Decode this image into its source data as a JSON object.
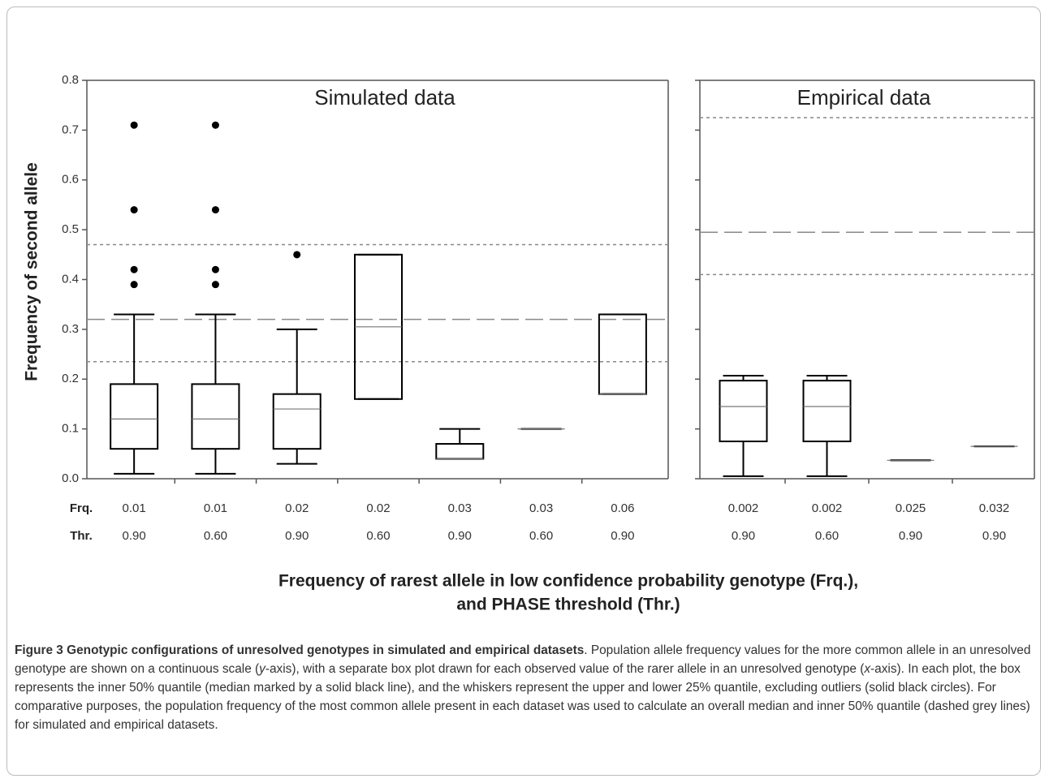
{
  "chart_data": [
    {
      "type": "box",
      "title": "Simulated data",
      "ylabel": "Frequency of second allele",
      "ylim": [
        0,
        0.8
      ],
      "yticks": [
        {
          "value": 0,
          "label": "0.0"
        },
        0.1,
        0.2,
        0.3,
        0.4,
        0.5,
        0.6,
        0.7,
        0.8
      ],
      "tick_labels": true,
      "categories": [
        "0.01",
        "0.01",
        "0.02",
        "0.02",
        "0.03",
        "0.03",
        "0.06"
      ],
      "thresholds": [
        "0.90",
        "0.60",
        "0.90",
        "0.60",
        "0.90",
        "0.60",
        "0.90"
      ],
      "boxes": [
        {
          "min": 0.01,
          "q1": 0.06,
          "median": 0.12,
          "q3": 0.19,
          "max": 0.33,
          "outliers": [
            0.39,
            0.42,
            0.54,
            0.71
          ]
        },
        {
          "min": 0.01,
          "q1": 0.06,
          "median": 0.12,
          "q3": 0.19,
          "max": 0.33,
          "outliers": [
            0.39,
            0.42,
            0.54,
            0.71
          ]
        },
        {
          "min": 0.03,
          "q1": 0.06,
          "median": 0.14,
          "q3": 0.17,
          "max": 0.3,
          "outliers": [
            0.45
          ]
        },
        {
          "min": 0.16,
          "q1": 0.16,
          "median": 0.305,
          "q3": 0.45,
          "max": 0.45,
          "outliers": []
        },
        {
          "min": 0.04,
          "q1": 0.04,
          "median": 0.04,
          "q3": 0.07,
          "max": 0.1,
          "outliers": []
        },
        {
          "min": 0.1,
          "q1": 0.1,
          "median": 0.1,
          "q3": 0.1,
          "max": 0.1,
          "outliers": []
        },
        {
          "min": 0.17,
          "q1": 0.17,
          "median": 0.17,
          "q3": 0.33,
          "max": 0.33,
          "outliers": []
        }
      ],
      "reference_lines": [
        {
          "value": 0.47,
          "style": "dotted"
        },
        {
          "value": 0.32,
          "style": "dashed"
        },
        {
          "value": 0.235,
          "style": "dotted"
        }
      ],
      "color": "#000000"
    },
    {
      "type": "box",
      "title": "Empirical data",
      "ylim": [
        0,
        0.8
      ],
      "yticks": [
        0,
        0.1,
        0.2,
        0.3,
        0.4,
        0.5,
        0.6,
        0.7,
        0.8
      ],
      "tick_labels": false,
      "categories": [
        "0.002",
        "0.002",
        "0.025",
        "0.032"
      ],
      "thresholds": [
        "0.90",
        "0.60",
        "0.90",
        "0.90"
      ],
      "boxes": [
        {
          "min": 0.005,
          "q1": 0.075,
          "median": 0.145,
          "q3": 0.197,
          "max": 0.207,
          "outliers": []
        },
        {
          "min": 0.005,
          "q1": 0.075,
          "median": 0.145,
          "q3": 0.197,
          "max": 0.207,
          "outliers": []
        },
        {
          "min": 0.037,
          "q1": 0.037,
          "median": 0.037,
          "q3": 0.037,
          "max": 0.037,
          "outliers": []
        },
        {
          "min": 0.065,
          "q1": 0.065,
          "median": 0.065,
          "q3": 0.065,
          "max": 0.065,
          "outliers": []
        }
      ],
      "reference_lines": [
        {
          "value": 0.725,
          "style": "dotted"
        },
        {
          "value": 0.495,
          "style": "dashed"
        },
        {
          "value": 0.41,
          "style": "dotted"
        }
      ],
      "color": "#000000"
    }
  ],
  "x_axis": {
    "row_labels": [
      "Frq.",
      "Thr."
    ],
    "title": [
      "Frequency of rarest allele in low confidence probability genotype (Frq.),",
      "and PHASE threshold (Thr.)"
    ]
  },
  "caption": {
    "heading": "Figure 3 Genotypic configurations of unresolved genotypes in simulated and empirical datasets",
    "parts": [
      ". Population allele frequency values for the more common allele in an unresolved genotype are shown on a continuous scale (",
      "y",
      "-axis), with a separate box plot drawn for each observed value of the rarer allele in an unresolved genotype (",
      "x",
      "-axis). In each plot, the box represents the inner 50% quantile (median marked by a solid black line), and the whiskers represent the upper and lower 25% quantile, excluding outliers (solid black circles). For comparative purposes, the population frequency of the most common allele present in each dataset was used to calculate an overall median and inner 50% quantile (dashed grey lines) for simulated and empirical datasets."
    ]
  }
}
